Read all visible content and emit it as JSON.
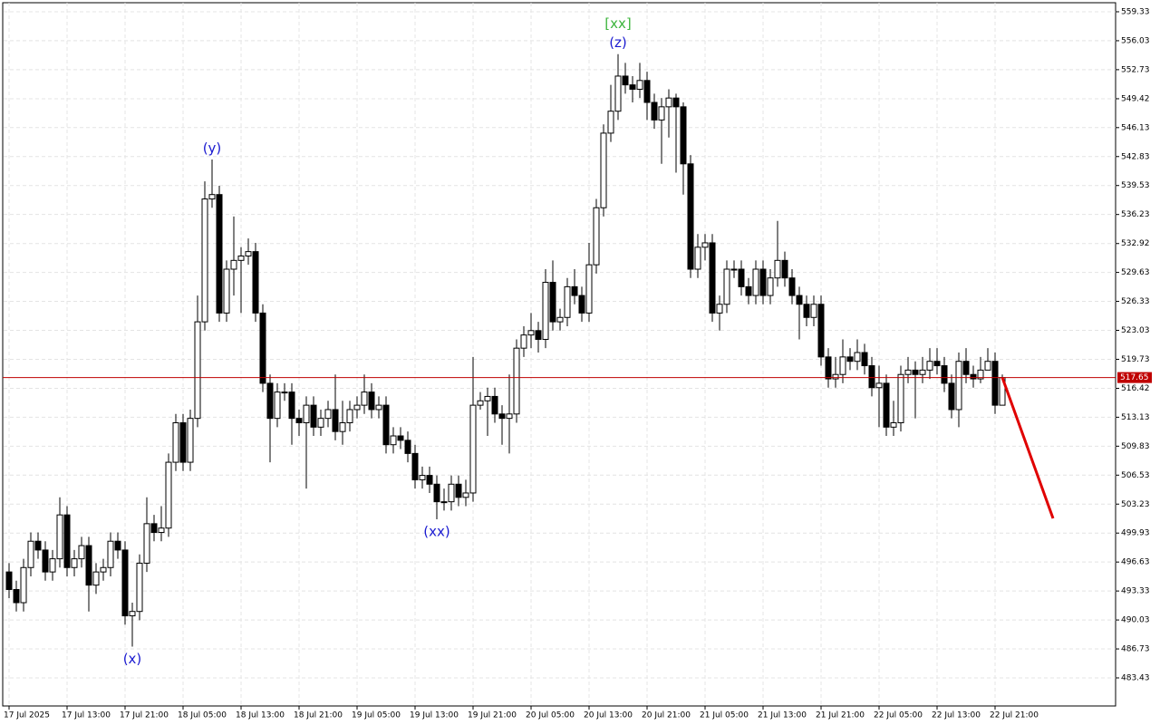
{
  "chart_data": {
    "type": "candlestick",
    "categories": [
      "17 Jul 2025",
      null,
      null,
      null,
      null,
      null,
      null,
      null,
      "17 Jul 13:00",
      null,
      null,
      null,
      null,
      null,
      null,
      null,
      "17 Jul 21:00",
      null,
      null,
      null,
      null,
      null,
      null,
      null,
      "18 Jul 05:00",
      null,
      null,
      null,
      null,
      null,
      null,
      null,
      "18 Jul 13:00",
      null,
      null,
      null,
      null,
      null,
      null,
      null,
      "18 Jul 21:00",
      null,
      null,
      null,
      null,
      null,
      null,
      null,
      "19 Jul 05:00",
      null,
      null,
      null,
      null,
      null,
      null,
      null,
      "19 Jul 13:00",
      null,
      null,
      null,
      null,
      null,
      null,
      null,
      "19 Jul 21:00",
      null,
      null,
      null,
      null,
      null,
      null,
      null,
      "20 Jul 05:00",
      null,
      null,
      null,
      null,
      null,
      null,
      null,
      "20 Jul 13:00",
      null,
      null,
      null,
      null,
      null,
      null,
      null,
      "20 Jul 21:00",
      null,
      null,
      null,
      null,
      null,
      null,
      null,
      "21 Jul 05:00",
      null,
      null,
      null,
      null,
      null,
      null,
      null,
      "21 Jul 13:00",
      null,
      null,
      null,
      null,
      null,
      null,
      null,
      "21 Jul 21:00",
      null,
      null,
      null,
      null,
      null,
      null,
      null,
      "22 Jul 05:00",
      null,
      null,
      null,
      null,
      null,
      null,
      null,
      "22 Jul 13:00",
      null,
      null,
      null,
      null,
      null,
      null,
      null,
      "22 Jul 21:00",
      null
    ],
    "open": [
      495.5,
      493.5,
      492,
      496,
      499,
      498,
      495.5,
      497,
      502,
      496,
      497,
      498.5,
      494,
      495.5,
      496,
      499,
      498,
      490.5,
      491,
      496.5,
      501,
      500,
      500.5,
      508,
      512.5,
      508,
      513,
      524,
      538,
      538.5,
      525,
      530,
      531,
      531.5,
      532,
      525,
      517,
      513,
      516,
      516,
      513,
      512.5,
      514.5,
      512,
      513,
      514,
      511.5,
      512.5,
      514,
      514.5,
      516,
      514,
      514.5,
      510,
      511,
      510.5,
      509,
      506,
      506.5,
      505.5,
      503.5,
      503.5,
      505.5,
      504,
      504.5,
      514.5,
      515,
      515.5,
      513.5,
      513,
      513.5,
      521,
      522.5,
      523,
      522,
      528.5,
      524,
      524.5,
      528,
      527,
      525,
      530.5,
      537,
      545.5,
      548,
      552,
      551,
      550.5,
      551.5,
      549,
      547,
      548.5,
      549.5,
      548.5,
      542,
      530,
      532.5,
      533,
      525,
      526,
      530,
      530,
      528,
      527,
      530,
      527,
      529,
      531,
      529,
      527,
      526,
      524.5,
      526,
      520,
      517.5,
      518,
      520,
      519.5,
      520.5,
      519,
      516.5,
      517,
      512,
      512.5,
      518,
      518.5,
      518,
      518.5,
      519.5,
      519,
      517,
      514,
      519.5,
      518,
      517.5,
      518.5,
      519.5,
      514.5
    ],
    "high": [
      496.5,
      494.5,
      497,
      500,
      500,
      499,
      498,
      504,
      503,
      498,
      499.5,
      499.5,
      496.5,
      497,
      500,
      500,
      499,
      492,
      497.5,
      504,
      502,
      503,
      509,
      513.5,
      513.5,
      514,
      527,
      540,
      542.5,
      539.5,
      531,
      536,
      532.5,
      533.5,
      533,
      526,
      518,
      517,
      517,
      517,
      514,
      515.5,
      515.5,
      514,
      515,
      518,
      515,
      515,
      515.5,
      518,
      517,
      515.5,
      515.5,
      512,
      512,
      511.5,
      510,
      507.5,
      507.5,
      506.5,
      505,
      506.5,
      506.5,
      506,
      520,
      516,
      516.5,
      516.5,
      514.5,
      518,
      522,
      523.5,
      525,
      524,
      530,
      531,
      525.5,
      529,
      530,
      528,
      533,
      538,
      546.5,
      551,
      554.5,
      553.5,
      552,
      553.5,
      552.5,
      550,
      549.5,
      550.5,
      550,
      549,
      543,
      534,
      534,
      534,
      527,
      531,
      531,
      531,
      529,
      531,
      531,
      530,
      535.5,
      532,
      530,
      528,
      527,
      527,
      527,
      521,
      520,
      522,
      521,
      522,
      521.5,
      520,
      519,
      518,
      515,
      519,
      520,
      519.5,
      520,
      521,
      521,
      520,
      518,
      520.5,
      521,
      519,
      520,
      521,
      520.5,
      518
    ],
    "low": [
      492.5,
      491,
      491,
      495,
      497,
      494.5,
      494.5,
      496,
      495,
      495,
      496,
      491,
      493,
      494.5,
      495,
      497,
      489.5,
      487,
      490,
      495.5,
      499,
      499,
      499.5,
      507,
      507,
      507,
      512,
      523,
      537,
      524,
      524,
      527,
      525,
      530.5,
      524,
      516,
      508,
      512,
      515,
      510,
      511,
      505,
      511,
      511,
      512,
      510.5,
      510,
      511.5,
      513,
      513.5,
      513,
      513,
      509,
      509,
      509.5,
      508,
      505,
      505,
      504.5,
      501.5,
      502.5,
      502.5,
      503,
      503,
      503.5,
      514,
      511,
      512.5,
      510,
      509,
      512.5,
      520,
      521,
      520.5,
      521,
      523,
      523,
      523.5,
      526,
      524,
      524,
      529.5,
      536,
      544.5,
      547,
      550,
      549,
      549.5,
      547,
      546,
      542,
      545,
      541,
      538.5,
      529,
      529,
      531,
      524,
      523,
      525,
      529,
      527,
      526,
      526,
      526,
      526,
      528,
      528,
      526,
      522,
      523.5,
      523.5,
      519,
      516.5,
      516.5,
      517,
      518.5,
      518.5,
      518,
      515.5,
      512,
      511,
      511,
      511.5,
      517,
      513,
      517,
      517.5,
      518,
      516,
      513,
      512,
      517,
      516.5,
      517,
      518.5,
      513.5,
      514.5
    ],
    "close": [
      493.5,
      492,
      496,
      499,
      498,
      495.5,
      497,
      502,
      496,
      497,
      498.5,
      494,
      495.5,
      496,
      499,
      498,
      490.5,
      491,
      496.5,
      501,
      500,
      500.5,
      508,
      512.5,
      508,
      513,
      524,
      538,
      538.5,
      525,
      530,
      531,
      531.5,
      532,
      525,
      517,
      513,
      516,
      516,
      513,
      512.5,
      514.5,
      512,
      513,
      514,
      511.5,
      512.5,
      514,
      514.5,
      516,
      514,
      514.5,
      510,
      511,
      510.5,
      509,
      506,
      506.5,
      505.5,
      503.5,
      503.5,
      505.5,
      504,
      504.5,
      514.5,
      515,
      515.5,
      513.5,
      513,
      513.5,
      521,
      522.5,
      523,
      522,
      528.5,
      524,
      524.5,
      528,
      527,
      525,
      530.5,
      537,
      545.5,
      548,
      552,
      551,
      550.5,
      551.5,
      549,
      547,
      548.5,
      549.5,
      548.5,
      542,
      530,
      532.5,
      533,
      525,
      526,
      530,
      530,
      528,
      527,
      530,
      527,
      529,
      531,
      529,
      527,
      526,
      524.5,
      526,
      520,
      517.5,
      518,
      520,
      519.5,
      520.5,
      519,
      516.5,
      517,
      512,
      512.5,
      518,
      518.5,
      518,
      518.5,
      519.5,
      519,
      517,
      514,
      519.5,
      518,
      517.5,
      518.5,
      519.5,
      514.5,
      517.65
    ],
    "up_color": "#ffffff",
    "down_color": "#000000",
    "ylim": [
      480.23,
      560.36
    ],
    "yticks": [
      483.43,
      486.73,
      490.03,
      493.33,
      496.63,
      499.93,
      503.23,
      506.53,
      509.83,
      513.13,
      516.42,
      519.73,
      523.03,
      526.33,
      529.63,
      532.92,
      536.23,
      539.53,
      542.83,
      546.13,
      549.42,
      552.73,
      556.03,
      559.33
    ],
    "grid": true,
    "price_line": {
      "value": 517.65,
      "color": "#c00000"
    },
    "forecast": {
      "values": [
        517.65,
        501.6
      ],
      "color": "#e00000"
    },
    "annotations": [
      {
        "text": "(x)",
        "candle": 17,
        "side": "below",
        "color": "#1a1ad0"
      },
      {
        "text": "(y)",
        "candle": 28,
        "side": "above",
        "color": "#1a1ad0"
      },
      {
        "text": "(xx)",
        "candle": 59,
        "side": "below",
        "color": "#1a1ad0"
      },
      {
        "text": "(z)",
        "candle": 84,
        "side": "above",
        "color": "#1a1ad0"
      },
      {
        "text": "[xx]",
        "candle": 84,
        "side": "above2",
        "color": "#3cb43c"
      }
    ]
  }
}
